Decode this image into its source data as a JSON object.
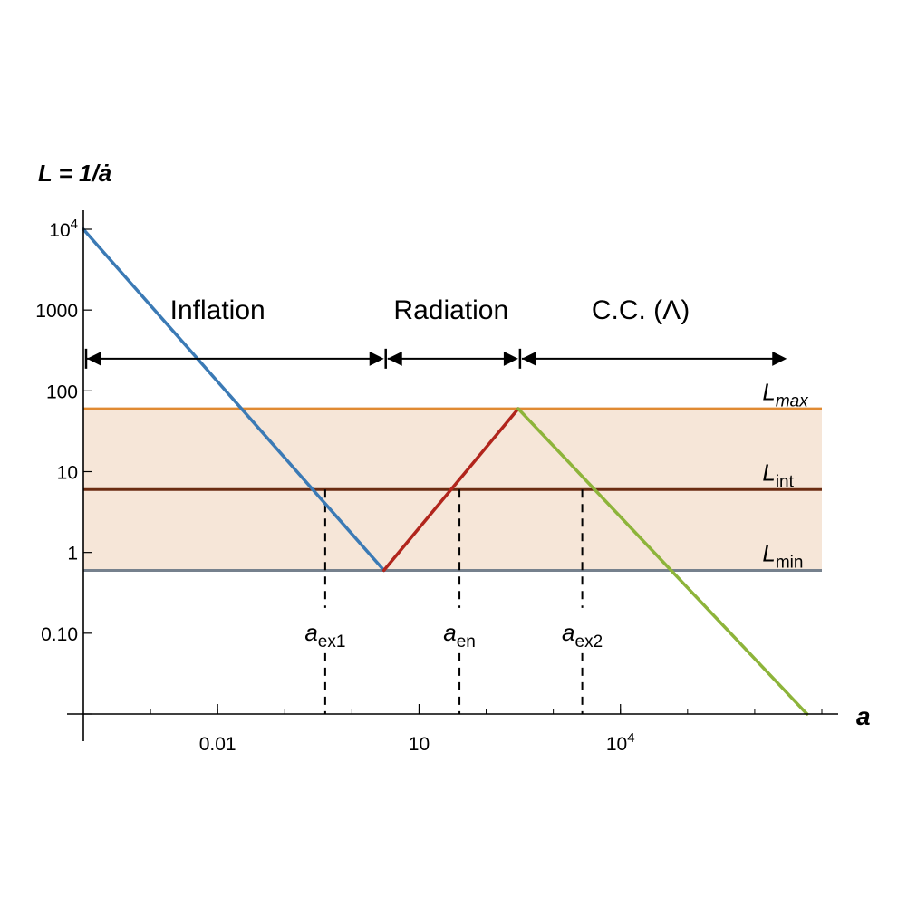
{
  "chart_data": {
    "type": "line",
    "xlabel": "a",
    "ylabel": "L = 1/ȧ",
    "xscale": "log",
    "yscale": "log",
    "xlim": [
      0.0001,
      10000000
    ],
    "ylim": [
      0.01,
      10000
    ],
    "x_ticks": [
      {
        "value": 0.01,
        "label": "0.01",
        "sup": ""
      },
      {
        "value": 10,
        "label": "10",
        "sup": ""
      },
      {
        "value": 10000,
        "label": "10",
        "sup": "4"
      }
    ],
    "y_ticks": [
      {
        "value": 0.1,
        "label": "0.10",
        "sup": ""
      },
      {
        "value": 1,
        "label": "1",
        "sup": ""
      },
      {
        "value": 10,
        "label": "10",
        "sup": ""
      },
      {
        "value": 100,
        "label": "100",
        "sup": ""
      },
      {
        "value": 1000,
        "label": "1000",
        "sup": ""
      },
      {
        "value": 10000,
        "label": "10",
        "sup": "4"
      }
    ],
    "series": [
      {
        "color": "#3b7ab5",
        "x": [
          0.0001,
          3
        ],
        "y": [
          10000,
          0.6
        ]
      },
      {
        "color": "#b1251c",
        "x": [
          3,
          300
        ],
        "y": [
          0.6,
          60
        ]
      },
      {
        "color": "#8db43a",
        "x": [
          300,
          6000000
        ],
        "y": [
          60,
          0.01
        ]
      }
    ],
    "levels": [
      {
        "main": "L",
        "sub": "max",
        "sub_italic": true,
        "y": 60,
        "color": "#e08a32",
        "label_x": 1300000,
        "label_y": 100
      },
      {
        "main": "L",
        "sub": "int",
        "sub_italic": false,
        "y": 6,
        "color": "#6b2c12",
        "label_x": 1300000,
        "label_y": 10
      },
      {
        "main": "L",
        "sub": "min",
        "sub_italic": false,
        "y": 0.6,
        "color": "#76818d",
        "label_x": 1300000,
        "label_y": 1
      }
    ],
    "band": {
      "y_low": 0.6,
      "y_high": 60,
      "color": "#f6e6d8"
    },
    "markers": [
      {
        "main": "a",
        "sub": "ex1",
        "x": 0.4,
        "label_y": 0.1
      },
      {
        "main": "a",
        "sub": "en",
        "x": 40,
        "label_y": 0.1
      },
      {
        "main": "a",
        "sub": "ex2",
        "x": 2700,
        "label_y": 0.1
      }
    ],
    "regions": [
      {
        "label": "Inflation",
        "x_start": 0.0001,
        "x_end": 3,
        "label_x": 0.01
      },
      {
        "label": "Radiation",
        "x_start": 3,
        "x_end": 300,
        "label_x": 30
      },
      {
        "label": "C.C. (Λ)",
        "x_start": 300,
        "x_end": 3000000,
        "label_x": 20000
      }
    ],
    "region_arrow_y": 250,
    "region_label_y": 1000
  }
}
